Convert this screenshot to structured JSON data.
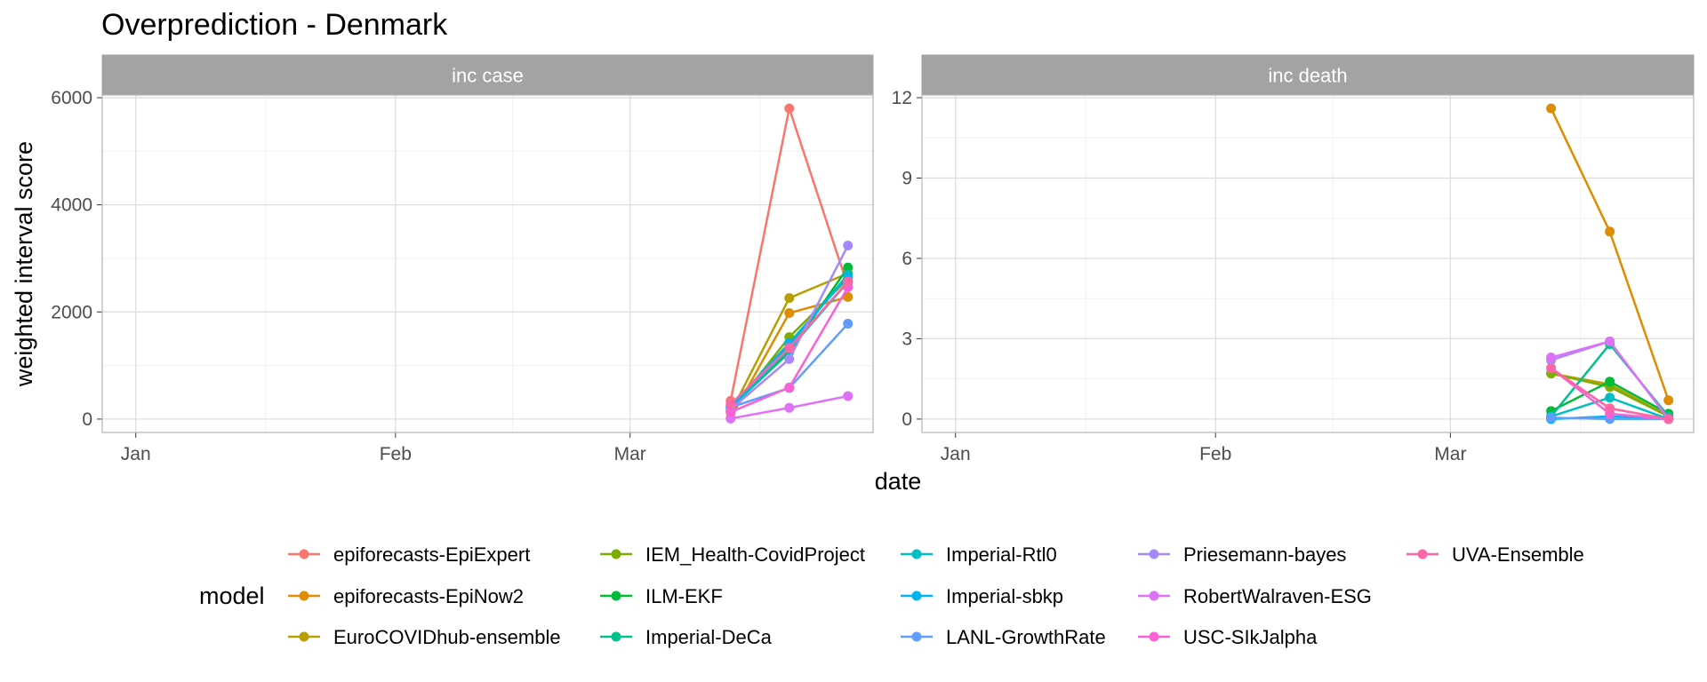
{
  "chart_data": {
    "type": "line",
    "title": "Overprediction - Denmark",
    "xlabel": "date",
    "ylabel": "weighted interval score",
    "x": [
      "2021-03-13",
      "2021-03-20",
      "2021-03-27"
    ],
    "xlim": [
      "2020-12-28",
      "2021-03-30"
    ],
    "x_ticks": [
      {
        "date": "2021-01-01",
        "label": "Jan"
      },
      {
        "date": "2021-02-01",
        "label": "Feb"
      },
      {
        "date": "2021-03-01",
        "label": "Mar"
      }
    ],
    "legend_title": "model",
    "legend_position": "bottom",
    "grid": true,
    "panels": [
      {
        "name": "inc case",
        "ylim": [
          -250,
          6050
        ],
        "yticks": [
          0,
          2000,
          4000,
          6000
        ],
        "series": [
          {
            "name": "epiforecasts-EpiExpert",
            "color": "#F8766D",
            "values": [
              340,
              5800,
              2480
            ]
          },
          {
            "name": "epiforecasts-EpiNow2",
            "color": "#DE8C00",
            "values": [
              20,
              1980,
              2280
            ]
          },
          {
            "name": "EuroCOVIDhub-ensemble",
            "color": "#B79F00",
            "values": [
              120,
              2260,
              2720
            ]
          },
          {
            "name": "IEM_Health-CovidProject",
            "color": "#7CAE00",
            "values": [
              150,
              1530,
              2620
            ]
          },
          {
            "name": "ILM-EKF",
            "color": "#00BA38",
            "values": [
              210,
              1250,
              2830
            ]
          },
          {
            "name": "Imperial-DeCa",
            "color": "#00C08B",
            "values": [
              230,
              1380,
              2700
            ]
          },
          {
            "name": "Imperial-Rtl0",
            "color": "#00BFC4",
            "values": [
              200,
              1300,
              2560
            ]
          },
          {
            "name": "Imperial-sbkp",
            "color": "#00B4F0",
            "values": [
              240,
              1420,
              2660
            ]
          },
          {
            "name": "LANL-GrowthRate",
            "color": "#619CFF",
            "values": [
              220,
              580,
              1780
            ]
          },
          {
            "name": "Priesemann-bayes",
            "color": "#A58AFF",
            "values": [
              180,
              1120,
              3240
            ]
          },
          {
            "name": "RobertWalraven-ESG",
            "color": "#DF70F8",
            "values": [
              10,
              210,
              430
            ]
          },
          {
            "name": "USC-SIkJalpha",
            "color": "#FB61D7",
            "values": [
              130,
              590,
              2460
            ]
          },
          {
            "name": "UVA-Ensemble",
            "color": "#FF66A8",
            "values": [
              280,
              1330,
              2570
            ]
          }
        ]
      },
      {
        "name": "inc death",
        "ylim": [
          -0.5,
          12.1
        ],
        "yticks": [
          0,
          3,
          6,
          9,
          12
        ],
        "series": [
          {
            "name": "epiforecasts-EpiExpert",
            "color": "#F8766D",
            "values": [
              1.9,
              0.4,
              0.0
            ]
          },
          {
            "name": "epiforecasts-EpiNow2",
            "color": "#DE8C00",
            "values": [
              11.6,
              7.0,
              0.7
            ]
          },
          {
            "name": "EuroCOVIDhub-ensemble",
            "color": "#B79F00",
            "values": [
              1.7,
              1.3,
              0.1
            ]
          },
          {
            "name": "IEM_Health-CovidProject",
            "color": "#7CAE00",
            "values": [
              1.7,
              1.2,
              0.1
            ]
          },
          {
            "name": "ILM-EKF",
            "color": "#00BA38",
            "values": [
              0.3,
              1.4,
              0.2
            ]
          },
          {
            "name": "Imperial-DeCa",
            "color": "#00C08B",
            "values": [
              0.1,
              2.8,
              0.1
            ]
          },
          {
            "name": "Imperial-Rtl0",
            "color": "#00BFC4",
            "values": [
              0.1,
              0.8,
              0.0
            ]
          },
          {
            "name": "Imperial-sbkp",
            "color": "#00B4F0",
            "values": [
              0.0,
              0.1,
              0.0
            ]
          },
          {
            "name": "LANL-GrowthRate",
            "color": "#619CFF",
            "values": [
              0.05,
              0.0,
              0.0
            ]
          },
          {
            "name": "Priesemann-bayes",
            "color": "#A58AFF",
            "values": [
              2.2,
              2.9,
              0.0
            ]
          },
          {
            "name": "RobertWalraven-ESG",
            "color": "#DF70F8",
            "values": [
              2.3,
              2.9,
              0.0
            ]
          },
          {
            "name": "USC-SIkJalpha",
            "color": "#FB61D7",
            "values": [
              1.9,
              0.2,
              0.0
            ]
          },
          {
            "name": "UVA-Ensemble",
            "color": "#FF66A8",
            "values": [
              1.9,
              0.4,
              0.0
            ]
          }
        ]
      }
    ]
  }
}
